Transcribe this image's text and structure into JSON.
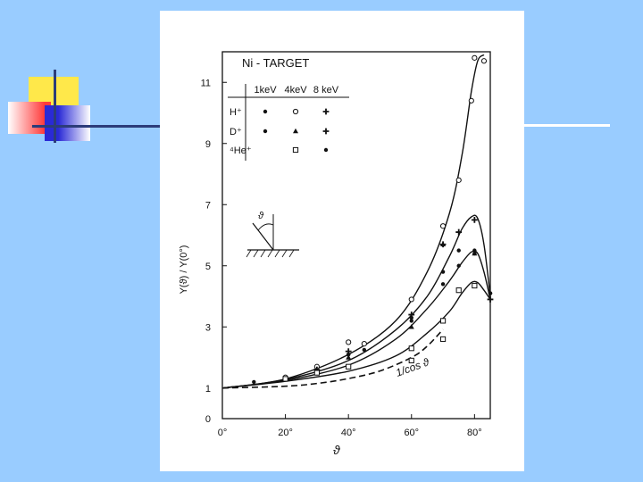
{
  "slide": {
    "background": "#99ccff",
    "decoration_colors": {
      "yellow": "#ffe84a",
      "red": "#ff3b3b",
      "blue": "#2a2ad6",
      "line": "#2c3c7a",
      "white_rule": "#ffffff"
    }
  },
  "chart_data": {
    "type": "scatter",
    "title": "Ni - TARGET",
    "xlabel": "ϑ",
    "ylabel": "Y(ϑ) / Y(0°)",
    "xlim": [
      0,
      85
    ],
    "ylim": [
      0,
      12
    ],
    "x_ticks": [
      0,
      20,
      40,
      60,
      80
    ],
    "x_tick_labels": [
      "0°",
      "20°",
      "40°",
      "60°",
      "80°"
    ],
    "y_ticks": [
      0,
      1,
      3,
      5,
      7,
      9,
      11
    ],
    "y_tick_labels": [
      "0",
      "1",
      "3",
      "5",
      "7",
      "9",
      "11"
    ],
    "legend": {
      "columns": [
        "1keV",
        "4keV",
        "8 keV"
      ],
      "rows": [
        "H⁺",
        "D⁺",
        "⁴He⁺"
      ],
      "placement": "top-left"
    },
    "reference_curve_label": "1/cos ϑ",
    "series": [
      {
        "name": "H⁺ 1keV",
        "marker": "dot",
        "points": [
          [
            10,
            1.2
          ],
          [
            20,
            1.35
          ],
          [
            30,
            1.55
          ],
          [
            40,
            2.1
          ],
          [
            45,
            2.25
          ],
          [
            60,
            3.2
          ],
          [
            70,
            4.4
          ],
          [
            75,
            5.0
          ],
          [
            80,
            5.5
          ],
          [
            85,
            4.1
          ]
        ]
      },
      {
        "name": "H⁺ 4keV",
        "marker": "circle",
        "points": [
          [
            20,
            1.35
          ],
          [
            30,
            1.7
          ],
          [
            40,
            2.5
          ],
          [
            45,
            2.45
          ],
          [
            60,
            3.9
          ],
          [
            70,
            6.3
          ],
          [
            75,
            7.8
          ],
          [
            79,
            10.4
          ],
          [
            80,
            11.8
          ],
          [
            83,
            11.7
          ]
        ]
      },
      {
        "name": "H⁺ 8keV",
        "marker": "plus",
        "points": [
          [
            30,
            1.6
          ],
          [
            40,
            2.2
          ],
          [
            60,
            3.4
          ],
          [
            70,
            5.7
          ],
          [
            75,
            6.1
          ],
          [
            80,
            6.5
          ],
          [
            85,
            3.9
          ]
        ]
      },
      {
        "name": "D⁺ 1keV",
        "marker": "dot",
        "points": [
          [
            40,
            2.1
          ],
          [
            60,
            3.3
          ],
          [
            70,
            4.8
          ],
          [
            75,
            5.5
          ],
          [
            80,
            5.4
          ]
        ]
      },
      {
        "name": "D⁺ 4keV",
        "marker": "triangle",
        "points": [
          [
            30,
            1.55
          ],
          [
            40,
            2.0
          ],
          [
            60,
            3.0
          ],
          [
            70,
            5.7
          ],
          [
            80,
            5.4
          ]
        ]
      },
      {
        "name": "⁴He⁺ 4keV",
        "marker": "square",
        "points": [
          [
            20,
            1.3
          ],
          [
            30,
            1.5
          ],
          [
            40,
            1.7
          ],
          [
            60,
            1.9
          ],
          [
            60,
            2.3
          ],
          [
            70,
            2.6
          ],
          [
            70,
            3.2
          ],
          [
            75,
            4.2
          ],
          [
            80,
            4.35
          ]
        ]
      },
      {
        "name": "⁴He⁺ 8keV",
        "marker": "dot",
        "points": [
          [
            85,
            4.1
          ]
        ]
      }
    ],
    "fit_curves": [
      {
        "points": [
          [
            0,
            1
          ],
          [
            20,
            1.3
          ],
          [
            40,
            2.1
          ],
          [
            55,
            3.2
          ],
          [
            65,
            4.8
          ],
          [
            72,
            6.7
          ],
          [
            76,
            8.6
          ],
          [
            79,
            10.7
          ],
          [
            81,
            11.7
          ],
          [
            83,
            11.9
          ]
        ]
      },
      {
        "points": [
          [
            0,
            1
          ],
          [
            20,
            1.28
          ],
          [
            40,
            1.9
          ],
          [
            55,
            2.9
          ],
          [
            65,
            4.0
          ],
          [
            72,
            5.3
          ],
          [
            76,
            6.2
          ],
          [
            79,
            6.6
          ],
          [
            81,
            6.55
          ],
          [
            83,
            5.7
          ],
          [
            85,
            4.0
          ]
        ]
      },
      {
        "points": [
          [
            0,
            1
          ],
          [
            20,
            1.25
          ],
          [
            40,
            1.75
          ],
          [
            55,
            2.6
          ],
          [
            65,
            3.6
          ],
          [
            72,
            4.5
          ],
          [
            76,
            5.1
          ],
          [
            79,
            5.45
          ],
          [
            81,
            5.4
          ],
          [
            83,
            4.8
          ],
          [
            85,
            3.9
          ]
        ]
      },
      {
        "points": [
          [
            0,
            1
          ],
          [
            20,
            1.22
          ],
          [
            40,
            1.55
          ],
          [
            55,
            2.05
          ],
          [
            65,
            2.8
          ],
          [
            72,
            3.5
          ],
          [
            76,
            4.1
          ],
          [
            79,
            4.45
          ],
          [
            81,
            4.45
          ],
          [
            83,
            4.2
          ],
          [
            85,
            3.9
          ]
        ]
      }
    ],
    "reference_curve": {
      "points": [
        [
          0,
          1
        ],
        [
          20,
          1.06
        ],
        [
          30,
          1.15
        ],
        [
          40,
          1.31
        ],
        [
          50,
          1.56
        ],
        [
          60,
          2.0
        ],
        [
          65,
          2.37
        ],
        [
          70,
          2.92
        ]
      ]
    },
    "grid": false
  }
}
